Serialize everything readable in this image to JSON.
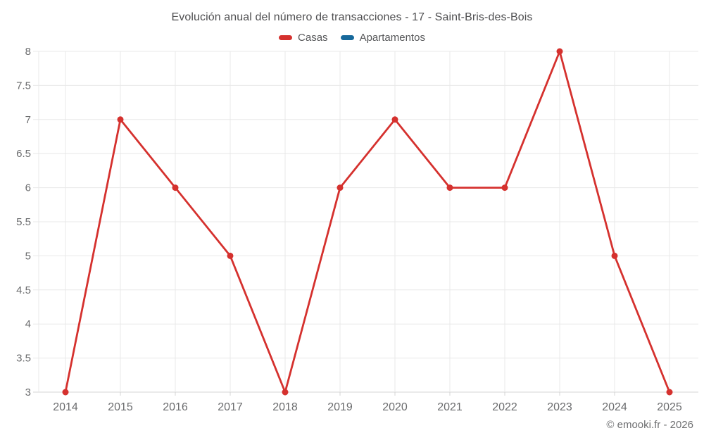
{
  "header": {
    "title": "Evolución anual del número de transacciones - 17 - Saint-Bris-des-Bois"
  },
  "legend": [
    {
      "label": "Casas",
      "color": "#d5312e"
    },
    {
      "label": "Apartamentos",
      "color": "#17699b"
    }
  ],
  "footer": {
    "credit": "© emooki.fr - 2026"
  },
  "colors": {
    "grid": "#e8e8e8",
    "axis_line": "#d4d4d4",
    "tick_text": "#6b6c6e",
    "title_text": "#4f4f51"
  },
  "chart_data": {
    "type": "line",
    "title": "Evolución anual del número de transacciones - 17 - Saint-Bris-des-Bois",
    "x": [
      2014,
      2015,
      2016,
      2017,
      2018,
      2019,
      2020,
      2021,
      2022,
      2023,
      2024,
      2025
    ],
    "series": [
      {
        "name": "Casas",
        "color": "#d5312e",
        "values": [
          3,
          7,
          6,
          5,
          3,
          6,
          7,
          6,
          6,
          8,
          5,
          3
        ]
      },
      {
        "name": "Apartamentos",
        "color": "#17699b",
        "values": []
      }
    ],
    "xlabel": "",
    "ylabel": "",
    "ylim": [
      3,
      8
    ],
    "ytick_step": 0.5,
    "yticks": [
      3,
      3.5,
      4,
      4.5,
      5,
      5.5,
      6,
      6.5,
      7,
      7.5,
      8
    ],
    "grid": true,
    "legend_position": "top"
  }
}
